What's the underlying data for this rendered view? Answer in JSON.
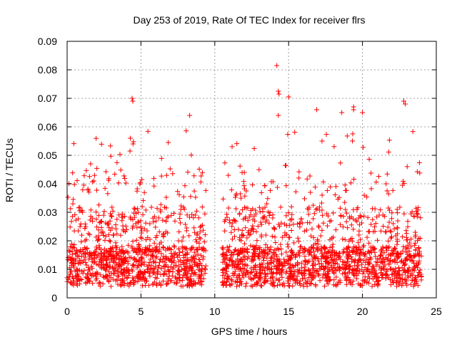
{
  "chart_data": {
    "type": "scatter",
    "title": "Day 253 of 2019, Rate Of TEC Index for receiver flrs",
    "xlabel": "GPS time / hours",
    "ylabel": "ROTI / TECUs",
    "xlim": [
      0,
      25
    ],
    "ylim": [
      0,
      0.09
    ],
    "xticks": [
      "0",
      "5",
      "10",
      "15",
      "20",
      "25"
    ],
    "yticks": [
      "0",
      "0.01",
      "0.02",
      "0.03",
      "0.04",
      "0.05",
      "0.06",
      "0.07",
      "0.08",
      "0.09"
    ],
    "grid": true,
    "marker": "plus",
    "color": "#ff0000",
    "data_gap_hours": [
      9.4,
      10.5
    ],
    "notable_points": [
      {
        "x": 4.4,
        "y": 0.07
      },
      {
        "x": 4.45,
        "y": 0.069
      },
      {
        "x": 8.3,
        "y": 0.064
      },
      {
        "x": 14.2,
        "y": 0.0815
      },
      {
        "x": 14.3,
        "y": 0.0725
      },
      {
        "x": 14.35,
        "y": 0.0715
      },
      {
        "x": 14.3,
        "y": 0.064
      },
      {
        "x": 15.0,
        "y": 0.0705
      },
      {
        "x": 16.9,
        "y": 0.066
      },
      {
        "x": 18.6,
        "y": 0.065
      },
      {
        "x": 19.4,
        "y": 0.067
      },
      {
        "x": 19.4,
        "y": 0.066
      },
      {
        "x": 20.0,
        "y": 0.065
      },
      {
        "x": 22.8,
        "y": 0.069
      },
      {
        "x": 22.9,
        "y": 0.068
      }
    ]
  }
}
